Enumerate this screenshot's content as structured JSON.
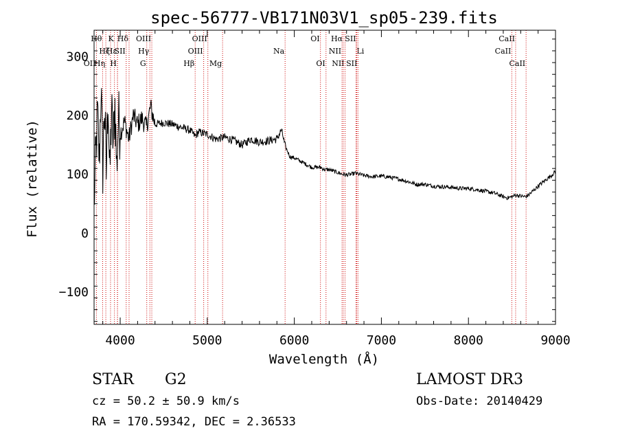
{
  "chart_data": {
    "type": "line",
    "title": "spec-56777-VB171N03V1_sp05-239.fits",
    "xlabel": "Wavelength (Å)",
    "ylabel": "Flux (relative)",
    "xlim": [
      3700,
      9000
    ],
    "ylim": [
      -155,
      345
    ],
    "xticks": [
      4000,
      5000,
      6000,
      7000,
      8000,
      9000
    ],
    "xtick_labels": [
      "4000",
      "5000",
      "6000",
      "7000",
      "8000",
      "9000"
    ],
    "yticks": [
      -100,
      0,
      100,
      200,
      300
    ],
    "ytick_labels": [
      "−100",
      "0",
      "100",
      "200",
      "300"
    ],
    "grid": false,
    "series": [
      {
        "name": "flux",
        "x": [
          3700,
          3720,
          3740,
          3760,
          3780,
          3800,
          3820,
          3840,
          3860,
          3880,
          3900,
          3920,
          3940,
          3960,
          3980,
          4000,
          4050,
          4100,
          4150,
          4200,
          4250,
          4300,
          4350,
          4400,
          4500,
          4600,
          4700,
          4800,
          4860,
          4900,
          5000,
          5100,
          5200,
          5300,
          5400,
          5500,
          5600,
          5700,
          5800,
          5850,
          5870,
          5890,
          5920,
          5950,
          6000,
          6100,
          6200,
          6300,
          6350,
          6400,
          6500,
          6560,
          6600,
          6650,
          6700,
          6800,
          6900,
          7000,
          7100,
          7200,
          7300,
          7400,
          7500,
          7600,
          7700,
          7800,
          7900,
          8000,
          8100,
          8200,
          8300,
          8400,
          8450,
          8500,
          8550,
          8600,
          8660,
          8700,
          8800,
          8900,
          8950,
          9000
        ],
        "values": [
          50,
          130,
          200,
          120,
          250,
          110,
          220,
          100,
          240,
          90,
          210,
          150,
          220,
          110,
          200,
          170,
          190,
          160,
          200,
          185,
          195,
          180,
          215,
          185,
          188,
          185,
          180,
          175,
          165,
          172,
          168,
          160,
          163,
          158,
          150,
          160,
          155,
          157,
          160,
          175,
          165,
          150,
          140,
          130,
          128,
          120,
          112,
          112,
          108,
          108,
          103,
          100,
          99,
          100,
          102,
          98,
          96,
          97,
          95,
          92,
          88,
          83,
          83,
          80,
          79,
          78,
          76,
          76,
          74,
          71,
          68,
          62,
          60,
          62,
          65,
          63,
          62,
          66,
          80,
          92,
          98,
          105
        ]
      }
    ],
    "lines": [
      {
        "label": "OII",
        "wave": 3727,
        "row": 2,
        "side": "left"
      },
      {
        "label": "Hθ",
        "wave": 3798,
        "row": 0,
        "side": "left"
      },
      {
        "label": "Hη",
        "wave": 3835,
        "row": 2,
        "side": "left"
      },
      {
        "label": "Hζ",
        "wave": 3889,
        "row": 1,
        "side": "left"
      },
      {
        "label": "K",
        "wave": 3934,
        "row": 0,
        "side": "left"
      },
      {
        "label": "H",
        "wave": 3968,
        "row": 2,
        "side": "left"
      },
      {
        "label": "Hε",
        "wave": 3970,
        "row": 1,
        "side": "left"
      },
      {
        "label": "SII",
        "wave": 4069,
        "row": 1,
        "side": "left"
      },
      {
        "label": "Hδ",
        "wave": 4102,
        "row": 0,
        "side": "left"
      },
      {
        "label": "G",
        "wave": 4305,
        "row": 2,
        "side": "left"
      },
      {
        "label": "Hγ",
        "wave": 4341,
        "row": 1,
        "side": "left"
      },
      {
        "label": "OIII",
        "wave": 4363,
        "row": 0,
        "side": "left"
      },
      {
        "label": "Hβ",
        "wave": 4861,
        "row": 2,
        "side": "left"
      },
      {
        "label": "OIII",
        "wave": 4959,
        "row": 1,
        "side": "left"
      },
      {
        "label": "OIII",
        "wave": 5007,
        "row": 0,
        "side": "left"
      },
      {
        "label": "Mg",
        "wave": 5176,
        "row": 2,
        "side": "left"
      },
      {
        "label": "Na",
        "wave": 5894,
        "row": 1,
        "side": "left"
      },
      {
        "label": "OI",
        "wave": 6300,
        "row": 0,
        "side": "left"
      },
      {
        "label": "OI",
        "wave": 6364,
        "row": 2,
        "side": "left"
      },
      {
        "label": "NII",
        "wave": 6548,
        "row": 1,
        "side": "left"
      },
      {
        "label": "NII",
        "wave": 6583,
        "row": 2,
        "side": "left"
      },
      {
        "label": "Hα",
        "wave": 6563,
        "row": 0,
        "side": "left"
      },
      {
        "label": "SII",
        "wave": 6717,
        "row": 0,
        "side": "left"
      },
      {
        "label": "Li",
        "wave": 6708,
        "row": 1,
        "side": "right"
      },
      {
        "label": "SII",
        "wave": 6731,
        "row": 2,
        "side": "left"
      },
      {
        "label": "CaII",
        "wave": 8498,
        "row": 1,
        "side": "left"
      },
      {
        "label": "CaII",
        "wave": 8542,
        "row": 0,
        "side": "left"
      },
      {
        "label": "CaII",
        "wave": 8662,
        "row": 2,
        "side": "left"
      }
    ]
  },
  "footer": {
    "object_class": "STAR",
    "subclass": "G2",
    "survey": "LAMOST DR3",
    "cz": "cz = 50.2 ± 50.9 km/s",
    "obs_date": "Obs-Date: 20140429",
    "coords": "RA = 170.59342, DEC =   2.36533"
  },
  "colors": {
    "spectrum": "#000000",
    "line_marker": "#cc0000",
    "axis": "#000000"
  }
}
